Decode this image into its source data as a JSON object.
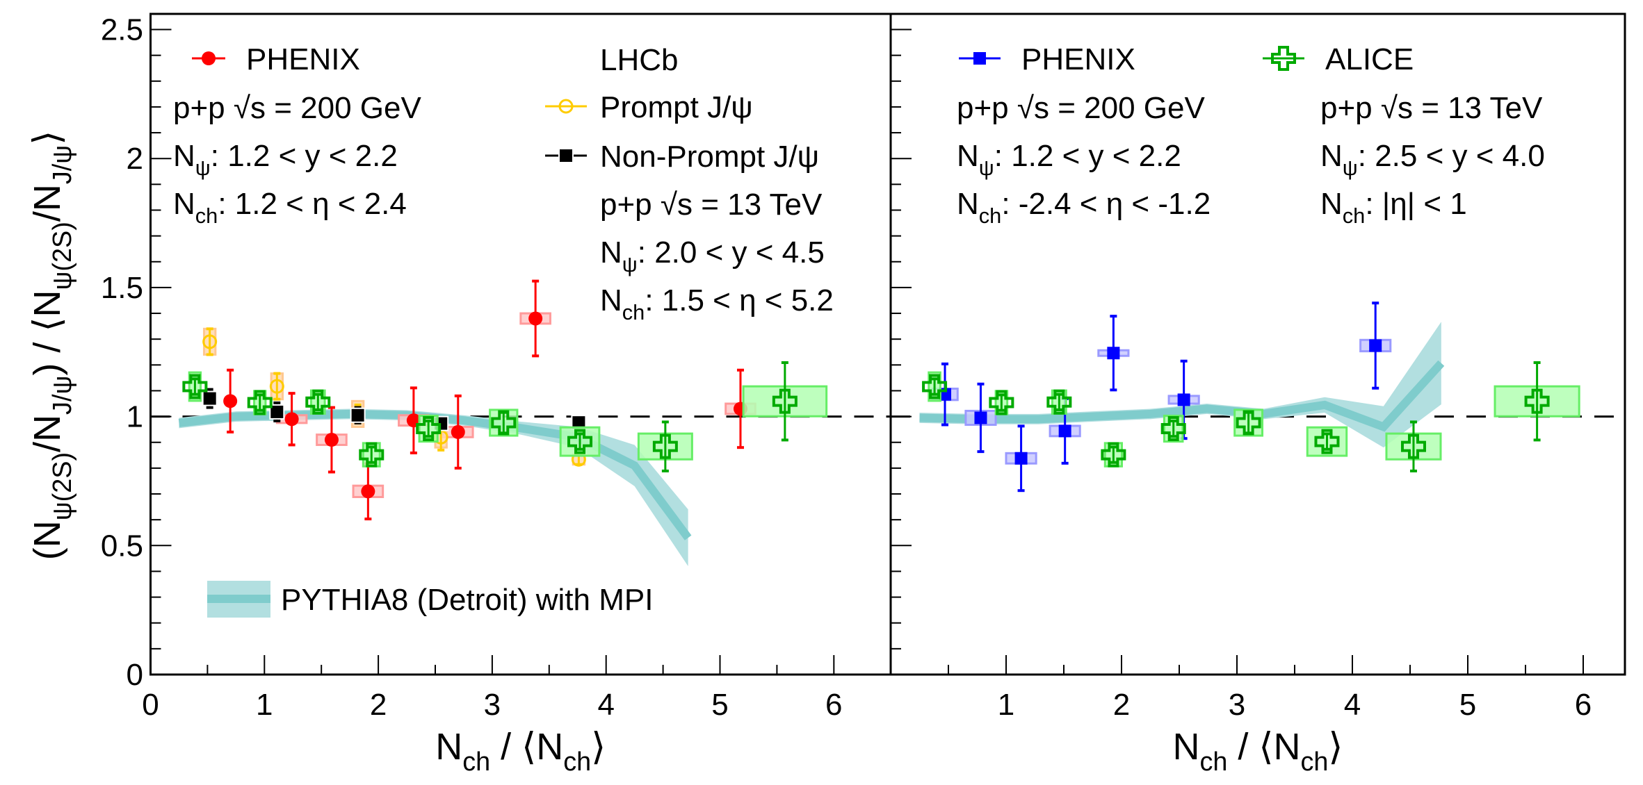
{
  "chart_data": [
    {
      "type": "scatter",
      "panel": "left",
      "xlabel_parts": [
        {
          "t": "N"
        },
        {
          "t": "ch",
          "sub": true
        },
        {
          "t": " / ⟨N"
        },
        {
          "t": "ch",
          "sub": true
        },
        {
          "t": "⟩"
        }
      ],
      "ylabel_parts": [
        {
          "t": "(N"
        },
        {
          "t": "ψ(2S)",
          "sub": true
        },
        {
          "t": "/N"
        },
        {
          "t": "J/ψ",
          "sub": true
        },
        {
          "t": ") / ⟨N"
        },
        {
          "t": "ψ(2S)",
          "sub": true
        },
        {
          "t": "/N"
        },
        {
          "t": "J/ψ",
          "sub": true
        },
        {
          "t": "⟩"
        }
      ],
      "xlim": [
        0,
        6.5
      ],
      "ylim": [
        0,
        2.56
      ],
      "xticks": [
        "0",
        "1",
        "2",
        "3",
        "4",
        "5",
        "6"
      ],
      "yticks": [
        "0",
        "0.5",
        "1",
        "1.5",
        "2",
        "2.5"
      ],
      "reference_line": 1,
      "band": {
        "name": "PYTHIA8 (Detroit) with MPI",
        "color": "#7fcccc",
        "fill": "#b2dfe0",
        "x": [
          0.25,
          0.75,
          1.25,
          1.75,
          2.25,
          2.75,
          3.25,
          3.75,
          4.25,
          4.72
        ],
        "y": [
          0.975,
          1.0,
          1.005,
          1.01,
          1.005,
          0.985,
          0.955,
          0.92,
          0.81,
          0.53
        ],
        "half_width": [
          0.02,
          0.02,
          0.02,
          0.02,
          0.02,
          0.02,
          0.025,
          0.04,
          0.08,
          0.11
        ]
      },
      "series": [
        {
          "name": "PHENIX",
          "marker": "filled-circle",
          "color": "#ff0000",
          "box_fill": "#ffc8c8",
          "box_stroke": "#ff9a9a",
          "x": [
            0.7,
            1.24,
            1.59,
            1.91,
            2.31,
            2.7,
            3.38,
            5.18
          ],
          "y": [
            1.06,
            0.99,
            0.91,
            0.71,
            0.985,
            0.94,
            1.38,
            1.03
          ],
          "stat": [
            0.12,
            0.1,
            0.125,
            0.107,
            0.126,
            0.14,
            0.145,
            0.15
          ],
          "sys_x": [
            0,
            0.13,
            0.13,
            0.13,
            0.13,
            0.13,
            0.13,
            0.13
          ],
          "sys_y": [
            0,
            0.015,
            0.02,
            0.022,
            0.02,
            0.02,
            0.02,
            0.02
          ]
        },
        {
          "name": "Prompt J/ψ",
          "marker": "open-circle",
          "color": "#ffcc00",
          "box_fill": "#ffd9b0",
          "box_stroke": "#ffc890",
          "x": [
            0.52,
            1.11,
            1.82,
            2.55,
            3.76
          ],
          "y": [
            1.29,
            1.117,
            1.01,
            0.92,
            0.834
          ],
          "stat": [
            0.05,
            0.05,
            0.035,
            0.05,
            0.02
          ],
          "sys_x": [
            0.05,
            0.05,
            0.05,
            0.05,
            0.05
          ],
          "sys_y": [
            0.05,
            0.05,
            0.05,
            0.04,
            0.02
          ]
        },
        {
          "name": "Non-Prompt J/ψ",
          "marker": "open-square",
          "color": "#000000",
          "box_fill": "#000000",
          "box_stroke": "#000000",
          "x": [
            0.52,
            1.11,
            1.82,
            2.55,
            3.76
          ],
          "y": [
            1.07,
            1.018,
            1.005,
            0.973,
            0.977
          ],
          "stat": [
            0.035,
            0.035,
            0.03,
            0.02,
            0.01
          ],
          "sys_x": [
            0.05,
            0.05,
            0.05,
            0.05,
            0.05
          ],
          "sys_y": [
            0.02,
            0.02,
            0.02,
            0.02,
            0.02
          ]
        },
        {
          "name": "ALICE",
          "marker": "open-cross",
          "color": "#00aa00",
          "box_fill": "#b3ffb3",
          "box_stroke": "#66ee66",
          "x": [
            0.39,
            0.96,
            1.47,
            1.94,
            2.44,
            3.1,
            3.77,
            4.52,
            5.57
          ],
          "y": [
            1.116,
            1.054,
            1.056,
            0.852,
            0.953,
            0.976,
            0.903,
            0.884,
            1.059
          ],
          "stat": [
            0.03,
            0.03,
            0.03,
            0.03,
            0.03,
            0.04,
            0.03,
            0.095,
            0.15
          ],
          "sys_x": [
            0.05,
            0.05,
            0.06,
            0.073,
            0.08,
            0.12,
            0.17,
            0.235,
            0.365
          ],
          "sys_y": [
            0.055,
            0.045,
            0.045,
            0.045,
            0.05,
            0.05,
            0.055,
            0.05,
            0.058
          ]
        }
      ]
    },
    {
      "type": "scatter",
      "panel": "right",
      "xlabel_parts": [
        {
          "t": "N"
        },
        {
          "t": "ch",
          "sub": true
        },
        {
          "t": " / ⟨N"
        },
        {
          "t": "ch",
          "sub": true
        },
        {
          "t": "⟩"
        }
      ],
      "xlim": [
        0,
        6.36
      ],
      "ylim": [
        0,
        2.56
      ],
      "xticks": [
        "",
        "1",
        "2",
        "3",
        "4",
        "5",
        "6"
      ],
      "reference_line": 1,
      "band": {
        "name": "PYTHIA8 (Detroit) with MPI",
        "color": "#7fcccc",
        "fill": "#b2dfe0",
        "x": [
          0.25,
          0.75,
          1.28,
          1.75,
          2.25,
          2.74,
          3.23,
          3.76,
          4.27,
          4.77
        ],
        "y": [
          0.995,
          0.99,
          0.99,
          1.0,
          1.01,
          1.03,
          1.01,
          1.045,
          0.96,
          1.207
        ],
        "half_width": [
          0.02,
          0.02,
          0.02,
          0.02,
          0.02,
          0.02,
          0.02,
          0.03,
          0.08,
          0.16
        ]
      },
      "series": [
        {
          "name": "PHENIX",
          "marker": "filled-square",
          "color": "#0000ff",
          "box_fill": "#c8c8ff",
          "box_stroke": "#9a9aff",
          "x": [
            0.47,
            0.78,
            1.13,
            1.51,
            1.93,
            2.54,
            4.2
          ],
          "y": [
            1.086,
            0.995,
            0.838,
            0.944,
            1.246,
            1.065,
            1.275
          ],
          "stat": [
            0.118,
            0.131,
            0.125,
            0.125,
            0.143,
            0.15,
            0.165
          ],
          "sys_x": [
            0.11,
            0.13,
            0.13,
            0.13,
            0.13,
            0.13,
            0.13
          ],
          "sys_y": [
            0.022,
            0.027,
            0.02,
            0.02,
            0.01,
            0.015,
            0.022
          ]
        },
        {
          "name": "ALICE",
          "marker": "open-cross",
          "color": "#00aa00",
          "box_fill": "#b3ffb3",
          "box_stroke": "#66ee66",
          "x": [
            0.38,
            0.96,
            1.46,
            1.93,
            2.45,
            3.1,
            3.78,
            4.53,
            5.6
          ],
          "y": [
            1.116,
            1.054,
            1.056,
            0.852,
            0.953,
            0.976,
            0.903,
            0.884,
            1.059
          ],
          "stat": [
            0.03,
            0.03,
            0.03,
            0.03,
            0.03,
            0.04,
            0.03,
            0.095,
            0.15
          ],
          "sys_x": [
            0.05,
            0.05,
            0.06,
            0.073,
            0.08,
            0.12,
            0.17,
            0.235,
            0.365
          ],
          "sys_y": [
            0.055,
            0.045,
            0.045,
            0.045,
            0.05,
            0.05,
            0.055,
            0.05,
            0.058
          ]
        }
      ]
    }
  ],
  "legend_left": {
    "phenix_label": "PHENIX",
    "phenix_lines": [
      [
        {
          "t": "p+p  √s = 200 GeV"
        }
      ],
      [
        {
          "t": "N"
        },
        {
          "t": "ψ",
          "sub": true
        },
        {
          "t": ": 1.2 < y < 2.2"
        }
      ],
      [
        {
          "t": "N"
        },
        {
          "t": "ch",
          "sub": true
        },
        {
          "t": ": 1.2 < η < 2.4"
        }
      ]
    ],
    "lhcb_label": "LHCb",
    "prompt_label": "Prompt J/ψ",
    "nonprompt_label": "Non-Prompt J/ψ",
    "lhcb_lines": [
      [
        {
          "t": "p+p  √s = 13 TeV"
        }
      ],
      [
        {
          "t": "N"
        },
        {
          "t": "ψ",
          "sub": true
        },
        {
          "t": ": 2.0 < y < 4.5"
        }
      ],
      [
        {
          "t": "N"
        },
        {
          "t": "ch",
          "sub": true
        },
        {
          "t": ": 1.5 < η < 5.2"
        }
      ]
    ],
    "pythia_label": "PYTHIA8 (Detroit) with MPI"
  },
  "legend_right": {
    "phenix_label": "PHENIX",
    "phenix_lines": [
      [
        {
          "t": "p+p  √s = 200 GeV"
        }
      ],
      [
        {
          "t": "N"
        },
        {
          "t": "ψ",
          "sub": true
        },
        {
          "t": ": 1.2 < y < 2.2"
        }
      ],
      [
        {
          "t": "N"
        },
        {
          "t": "ch",
          "sub": true
        },
        {
          "t": ": -2.4 < η < -1.2"
        }
      ]
    ],
    "alice_label": "ALICE",
    "alice_lines": [
      [
        {
          "t": "p+p  √s = 13 TeV"
        }
      ],
      [
        {
          "t": "N"
        },
        {
          "t": "ψ",
          "sub": true
        },
        {
          "t": ": 2.5 < y < 4.0"
        }
      ],
      [
        {
          "t": "N"
        },
        {
          "t": "ch",
          "sub": true
        },
        {
          "t": ": |η| < 1"
        }
      ]
    ]
  }
}
